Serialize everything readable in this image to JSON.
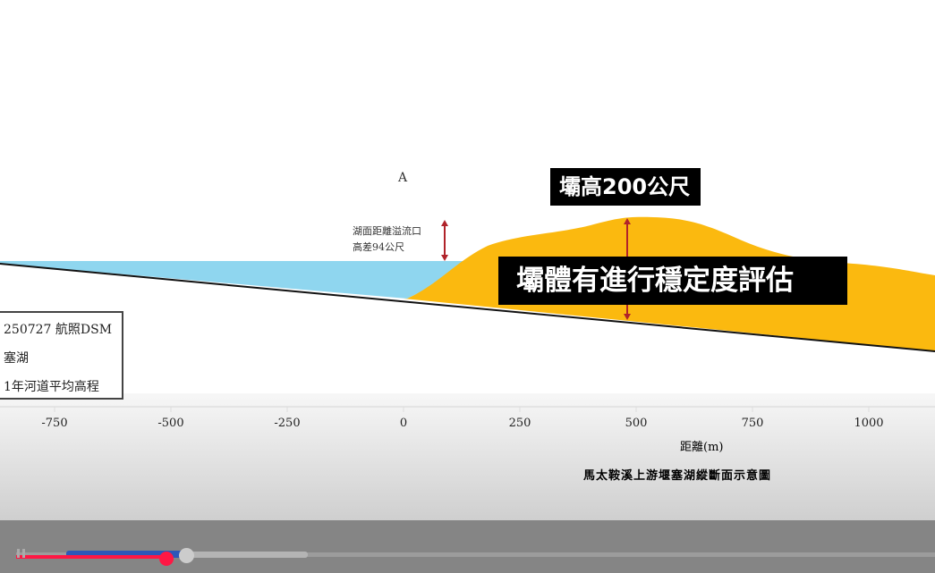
{
  "diagram": {
    "point_label": "A",
    "lake_gap_label_line1": "湖面距離溢流口",
    "lake_gap_label_line2": "高差94公尺",
    "caption_dam_height": "壩高200公尺",
    "caption_stability": "壩體有進行穩定度評估",
    "legend": [
      "250727 航照DSM",
      "塞湖",
      "1年河道平均高程"
    ],
    "x_axis": {
      "label": "距離(m)",
      "ticks": [
        -750,
        -500,
        -250,
        0,
        250,
        500,
        750,
        1000
      ]
    },
    "title": "馬太鞍溪上游堰塞湖縱斷面示意圖",
    "colors": {
      "lake": "#8fd6ef",
      "dam": "#fbb90f",
      "arrow": "#b0232a",
      "caption_bg": "#000000"
    }
  },
  "video_player": {
    "played_fraction": 0.178,
    "buffered_fraction": 0.2,
    "icons": {
      "pause": "pause-icon"
    }
  }
}
